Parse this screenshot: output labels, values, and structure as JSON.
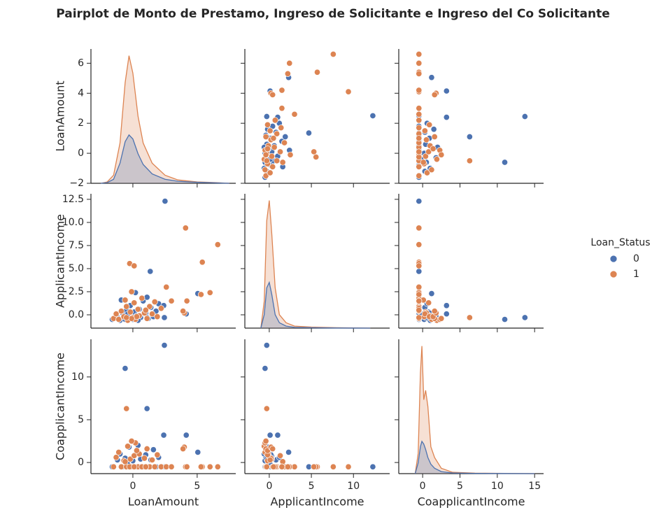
{
  "chart_data": {
    "type": "pairplot",
    "title": "Pairplot de Monto de Prestamo, Ingreso de Solicitante e Ingreso del Co Solicitante",
    "legend_title": "Loan_Status",
    "series": [
      {
        "name": "0",
        "color": "#4c72b0"
      },
      {
        "name": "1",
        "color": "#dd8452"
      }
    ],
    "variables": [
      {
        "name": "LoanAmount",
        "xlim": [
          -3.26,
          8.0
        ],
        "xticks": [
          0,
          5
        ],
        "ylim": [
          -2.0,
          6.95
        ],
        "yticks": [
          {
            "value": -2,
            "label": "−2"
          },
          0,
          2,
          4,
          6
        ],
        "kde": {
          "x": [
            -2.5,
            -2,
            -1.5,
            -1,
            -0.6,
            -0.3,
            0,
            0.4,
            0.8,
            1.5,
            2.5,
            3.5,
            5,
            6.5,
            7.5
          ],
          "ylim": [
            0,
            1.0
          ],
          "values": [
            [
              0,
              0.005,
              0.03,
              0.15,
              0.31,
              0.36,
              0.33,
              0.22,
              0.14,
              0.07,
              0.03,
              0.015,
              0.008,
              0.003,
              0
            ],
            [
              0,
              0.01,
              0.06,
              0.3,
              0.75,
              0.95,
              0.82,
              0.5,
              0.3,
              0.15,
              0.06,
              0.025,
              0.01,
              0.005,
              0
            ]
          ]
        }
      },
      {
        "name": "ApplicantIncome",
        "xlim": [
          -2.9,
          14.3
        ],
        "xticks": [
          0,
          5,
          10
        ],
        "ylim": [
          -1.44,
          13.1
        ],
        "yticks": [
          {
            "value": 0,
            "label": "0.0"
          },
          {
            "value": 2.5,
            "label": "2.5"
          },
          {
            "value": 5,
            "label": "5.0"
          },
          {
            "value": 7.5,
            "label": "7.5"
          },
          {
            "value": 10,
            "label": "10.0"
          },
          {
            "value": 12.5,
            "label": "12.5"
          }
        ],
        "kde": {
          "x": [
            -1,
            -0.6,
            -0.3,
            0,
            0.3,
            0.7,
            1.2,
            2,
            3,
            5,
            8,
            12
          ],
          "ylim": [
            0,
            1.0
          ],
          "values": [
            [
              0,
              0.1,
              0.3,
              0.34,
              0.25,
              0.1,
              0.04,
              0.015,
              0.006,
              0.003,
              0.001,
              0
            ],
            [
              0,
              0.2,
              0.8,
              0.95,
              0.7,
              0.3,
              0.1,
              0.04,
              0.015,
              0.008,
              0.003,
              0
            ]
          ]
        }
      },
      {
        "name": "CoapplicantIncome",
        "xlim": [
          -3.2,
          16.2
        ],
        "xticks": [
          0,
          5,
          10,
          15
        ],
        "ylim": [
          -1.3,
          14.4
        ],
        "yticks": [
          0,
          5,
          10
        ],
        "kde": {
          "x": [
            -1,
            -0.6,
            -0.3,
            -0.1,
            0.15,
            0.4,
            0.7,
            1.1,
            1.6,
            2.5,
            4,
            7,
            11,
            15
          ],
          "ylim": [
            0,
            1.0
          ],
          "values": [
            [
              0,
              0.08,
              0.2,
              0.24,
              0.22,
              0.18,
              0.12,
              0.07,
              0.04,
              0.015,
              0.005,
              0.002,
              0.001,
              0
            ],
            [
              0,
              0.15,
              0.75,
              0.95,
              0.55,
              0.62,
              0.5,
              0.2,
              0.12,
              0.04,
              0.01,
              0.004,
              0.002,
              0
            ]
          ]
        }
      }
    ],
    "observations": [
      [
        [
          -1.6,
          -1.2,
          -1.0,
          -0.8,
          -0.6,
          -0.5,
          -0.3,
          -0.2,
          0,
          0.1,
          0.2,
          0.3,
          0.5,
          0.6,
          0.8,
          1.0,
          1.2,
          1.4,
          1.6,
          1.8,
          2.0,
          -0.9,
          0.4,
          -0.4,
          1.1,
          2.5,
          2.45,
          -0.6,
          1.1,
          1.35,
          5.05,
          4.15,
          2.4
        ],
        [
          -0.5,
          -0.3,
          -0.6,
          0.2,
          -0.4,
          0.5,
          -0.2,
          1.0,
          -0.5,
          0.3,
          2.4,
          -0.1,
          0.6,
          -0.3,
          1.5,
          0.2,
          -0.4,
          0.8,
          -0.2,
          0.4,
          1.2,
          1.6,
          -0.6,
          0.1,
          1.9,
          12.3,
          -0.3,
          -0.5,
          -0.3,
          4.7,
          2.3,
          0.1,
          1.0
        ],
        [
          -0.5,
          0.3,
          1.0,
          -0.5,
          0.5,
          -0.5,
          1.8,
          -0.5,
          0.2,
          0.8,
          -0.5,
          1.2,
          -0.5,
          0.4,
          -0.5,
          0.9,
          -0.5,
          0.3,
          1.5,
          -0.5,
          0.6,
          -0.5,
          2.0,
          -0.2,
          -0.5,
          -0.5,
          13.7,
          11,
          6.3,
          -0.5,
          1.2,
          3.2,
          3.2
        ]
      ],
      [
        [
          -1.5,
          -1.3,
          -1.1,
          -0.9,
          -0.7,
          -0.5,
          -0.4,
          -0.2,
          0,
          0.1,
          0.2,
          0.4,
          0.5,
          0.7,
          0.9,
          1.1,
          1.3,
          1.5,
          1.7,
          1.9,
          2.2,
          -0.1,
          -0.6,
          0.3,
          1.0,
          2.6,
          3.0,
          -0.1,
          6.6,
          5.4,
          4.1,
          6.0,
          5.3,
          -0.25,
          0.1,
          -0.5,
          4.2,
          4.0,
          3.9
        ],
        [
          -0.4,
          0.1,
          -0.5,
          0.4,
          -0.2,
          0.9,
          -0.6,
          0.3,
          -0.3,
          1.3,
          -0.5,
          0.6,
          -0.1,
          1.8,
          0.2,
          -0.4,
          0.9,
          0.1,
          1.4,
          -0.2,
          0.7,
          2.5,
          1.6,
          -0.2,
          0.5,
          3.0,
          1.5,
          -0.4,
          7.6,
          5.7,
          9.4,
          2.4,
          2.2,
          5.55,
          5.3,
          -0.3,
          1.5,
          0.2,
          0.4
        ],
        [
          -0.5,
          0.6,
          1.2,
          -0.5,
          0.2,
          -0.5,
          1.9,
          0.4,
          -0.5,
          0.8,
          2.3,
          -0.5,
          1.0,
          -0.5,
          0.5,
          1.6,
          -0.5,
          0.3,
          -0.5,
          0.9,
          -0.5,
          -0.5,
          0.1,
          1.4,
          -0.5,
          -0.5,
          -0.5,
          2.5,
          -0.5,
          -0.5,
          -0.5,
          -0.5,
          -0.5,
          -0.5,
          -0.5,
          6.3,
          -0.5,
          1.8,
          1.6
        ]
      ]
    ]
  }
}
